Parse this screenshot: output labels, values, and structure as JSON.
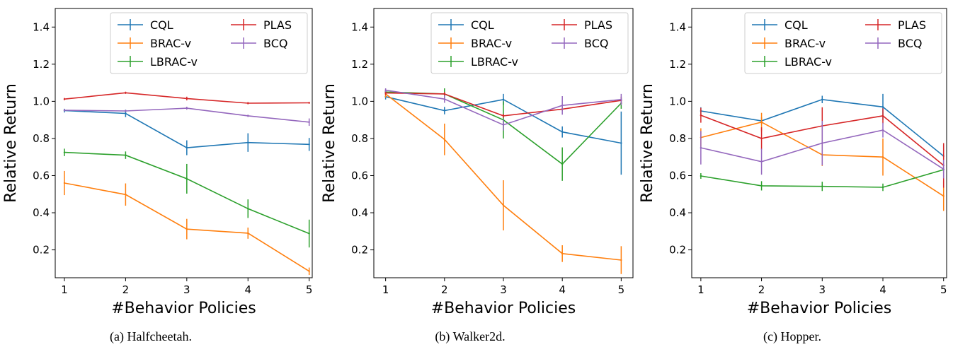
{
  "colors": {
    "CQL": "#1f77b4",
    "BRAC-v": "#ff7f0e",
    "LBRAC-v": "#2ca02c",
    "PLAS": "#d62728",
    "BCQ": "#9467bd"
  },
  "chart_data": [
    {
      "type": "line",
      "caption": "(a) Halfcheetah.",
      "xlabel": "#Behavior Policies",
      "ylabel": "Relative Return",
      "x": [
        1,
        2,
        3,
        4,
        5
      ],
      "xlim": [
        0.85,
        5.05
      ],
      "ylim": [
        0.05,
        1.5
      ],
      "yticks": [
        "0.2",
        "0.4",
        "0.6",
        "0.8",
        "1.0",
        "1.2",
        "1.4"
      ],
      "xticks": [
        "1",
        "2",
        "3",
        "4",
        "5"
      ],
      "legend_position": "top-right",
      "series": [
        {
          "name": "CQL",
          "values": [
            0.95,
            0.935,
            0.75,
            0.778,
            0.768
          ],
          "err": [
            0.01,
            0.02,
            0.04,
            0.05,
            0.035
          ]
        },
        {
          "name": "BRAC-v",
          "values": [
            0.56,
            0.498,
            0.312,
            0.29,
            0.085
          ],
          "err": [
            0.065,
            0.06,
            0.055,
            0.03,
            0.02
          ]
        },
        {
          "name": "LBRAC-v",
          "values": [
            0.725,
            0.71,
            0.583,
            0.422,
            0.288
          ],
          "err": [
            0.02,
            0.02,
            0.08,
            0.05,
            0.075
          ]
        },
        {
          "name": "PLAS",
          "values": [
            1.012,
            1.046,
            1.015,
            0.99,
            0.992
          ],
          "err": [
            0.006,
            0.006,
            0.01,
            0.006,
            0.005
          ]
        },
        {
          "name": "BCQ",
          "values": [
            0.952,
            0.948,
            0.963,
            0.922,
            0.888
          ],
          "err": [
            0.006,
            0.006,
            0.008,
            0.006,
            0.02
          ]
        }
      ]
    },
    {
      "type": "line",
      "caption": "(b) Walker2d.",
      "xlabel": "#Behavior Policies",
      "ylabel": "Relative Return",
      "x": [
        1,
        2,
        3,
        4,
        5
      ],
      "xlim": [
        0.8,
        5.2
      ],
      "ylim": [
        0.05,
        1.5
      ],
      "yticks": [
        "0.2",
        "0.4",
        "0.6",
        "0.8",
        "1.0",
        "1.2",
        "1.4"
      ],
      "xticks": [
        "1",
        "2",
        "3",
        "4",
        "5"
      ],
      "legend_position": "top-right",
      "series": [
        {
          "name": "CQL",
          "values": [
            1.025,
            0.95,
            1.01,
            0.835,
            0.775
          ],
          "err": [
            0.015,
            0.02,
            0.03,
            0.03,
            0.17
          ]
        },
        {
          "name": "BRAC-v",
          "values": [
            1.04,
            0.795,
            0.44,
            0.18,
            0.145
          ],
          "err": [
            0.02,
            0.085,
            0.135,
            0.045,
            0.075
          ]
        },
        {
          "name": "LBRAC-v",
          "values": [
            1.05,
            1.04,
            0.9,
            0.662,
            0.99
          ],
          "err": [
            0.01,
            0.03,
            0.1,
            0.09,
            0.03
          ]
        },
        {
          "name": "PLAS",
          "values": [
            1.045,
            1.04,
            0.922,
            0.958,
            1.005
          ],
          "err": [
            0.01,
            0.01,
            0.01,
            0.01,
            0.02
          ]
        },
        {
          "name": "BCQ",
          "values": [
            1.06,
            1.012,
            0.873,
            0.978,
            1.01
          ],
          "err": [
            0.01,
            0.02,
            0.03,
            0.05,
            0.03
          ]
        }
      ]
    },
    {
      "type": "line",
      "caption": "(c) Hopper.",
      "xlabel": "#Behavior Policies",
      "ylabel": "Relative Return",
      "x": [
        1,
        2,
        3,
        4,
        5
      ],
      "xlim": [
        0.85,
        5.05
      ],
      "ylim": [
        0.05,
        1.5
      ],
      "yticks": [
        "0.2",
        "0.4",
        "0.6",
        "0.8",
        "1.0",
        "1.2",
        "1.4"
      ],
      "xticks": [
        "1",
        "2",
        "3",
        "4",
        "5"
      ],
      "legend_position": "top-right",
      "series": [
        {
          "name": "CQL",
          "values": [
            0.948,
            0.895,
            1.01,
            0.97,
            0.705
          ],
          "err": [
            0.02,
            0.02,
            0.02,
            0.07,
            0.06
          ]
        },
        {
          "name": "BRAC-v",
          "values": [
            0.805,
            0.888,
            0.712,
            0.7,
            0.49
          ],
          "err": [
            0.05,
            0.05,
            0.06,
            0.1,
            0.08
          ]
        },
        {
          "name": "LBRAC-v",
          "values": [
            0.598,
            0.545,
            0.542,
            0.537,
            0.632
          ],
          "err": [
            0.015,
            0.025,
            0.025,
            0.02,
            0.02
          ]
        },
        {
          "name": "PLAS",
          "values": [
            0.925,
            0.8,
            0.868,
            0.922,
            0.655
          ],
          "err": [
            0.04,
            0.06,
            0.1,
            0.04,
            0.12
          ]
        },
        {
          "name": "BCQ",
          "values": [
            0.75,
            0.675,
            0.775,
            0.845,
            0.635
          ],
          "err": [
            0.09,
            0.07,
            0.12,
            0.04,
            0.05
          ]
        }
      ]
    }
  ]
}
